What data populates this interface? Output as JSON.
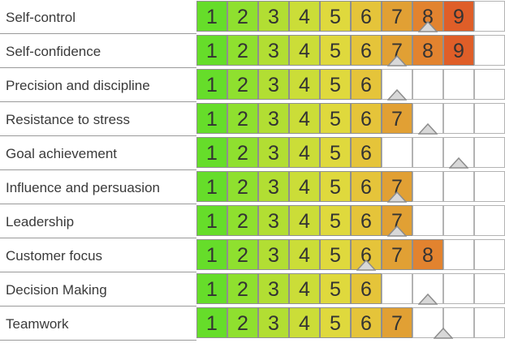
{
  "chart_data": {
    "type": "table",
    "scale": [
      "1",
      "2",
      "3",
      "4",
      "5",
      "6",
      "7",
      "8",
      "9"
    ],
    "scale_colors": [
      "#66dd2a",
      "#8fe02f",
      "#b2de33",
      "#cbdd38",
      "#dfd93d",
      "#e5c43a",
      "#e1a034",
      "#e2832f",
      "#df5e28"
    ],
    "rows": [
      {
        "label": "Self-control",
        "filled": 9,
        "marker": 8.5
      },
      {
        "label": "Self-confidence",
        "filled": 9,
        "marker": 7.5
      },
      {
        "label": "Precision and discipline",
        "filled": 6,
        "marker": 7.5
      },
      {
        "label": "Resistance to stress",
        "filled": 7,
        "marker": 8.5
      },
      {
        "label": "Goal achievement",
        "filled": 6,
        "marker": 9.5
      },
      {
        "label": "Influence and persuasion",
        "filled": 7,
        "marker": 7.5
      },
      {
        "label": "Leadership",
        "filled": 7,
        "marker": 7.5
      },
      {
        "label": "Customer focus",
        "filled": 8,
        "marker": 6.5
      },
      {
        "label": "Decision Making",
        "filled": 6,
        "marker": 8.5
      },
      {
        "label": "Teamwork",
        "filled": 7,
        "marker": 9
      }
    ],
    "total_cells": 10
  }
}
